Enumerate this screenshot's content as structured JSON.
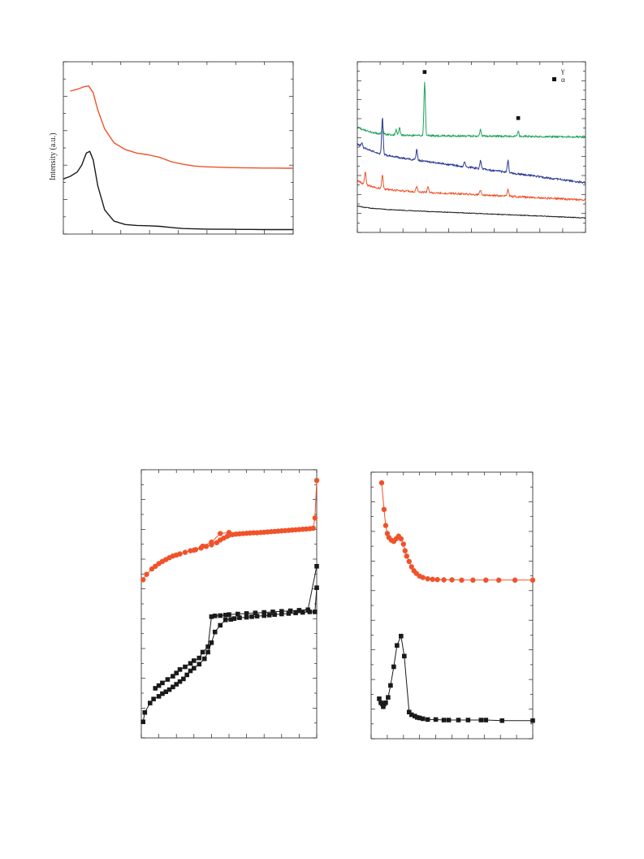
{
  "colors": {
    "black": "#1a1a1a",
    "orange": "#f0522a",
    "green": "#1fa65a",
    "blue": "#2a3a96"
  },
  "chart_data": [
    {
      "id": "saxs",
      "type": "line",
      "ylabel": "Intensity (a.u.)",
      "xlim": [
        0,
        10
      ],
      "ylim": [
        0,
        10
      ],
      "grid": false,
      "series": [
        {
          "color": "orange",
          "x": [
            0.3,
            0.6,
            0.9,
            1.1,
            1.3,
            1.5,
            1.8,
            2.2,
            2.7,
            3.2,
            3.7,
            4.2,
            4.7,
            5.2,
            5.7,
            6.2,
            6.7,
            7.2,
            7.7,
            8.2,
            8.7,
            9.2,
            9.7,
            10
          ],
          "y": [
            8.3,
            8.4,
            8.55,
            8.6,
            8.2,
            7.2,
            6.1,
            5.3,
            4.9,
            4.7,
            4.6,
            4.45,
            4.2,
            4.05,
            3.95,
            3.9,
            3.88,
            3.86,
            3.85,
            3.84,
            3.83,
            3.83,
            3.82,
            3.82
          ]
        },
        {
          "color": "black",
          "x": [
            0,
            0.3,
            0.6,
            0.8,
            1.0,
            1.15,
            1.3,
            1.5,
            1.8,
            2.2,
            2.7,
            3.2,
            3.7,
            4.2,
            4.7,
            5.2,
            5.7,
            6.2,
            6.7,
            7.2,
            7.7,
            8.2,
            8.7,
            9.2,
            9.7,
            10
          ],
          "y": [
            3.2,
            3.35,
            3.6,
            4.0,
            4.7,
            4.8,
            4.3,
            2.8,
            1.4,
            0.75,
            0.55,
            0.5,
            0.48,
            0.45,
            0.38,
            0.32,
            0.3,
            0.29,
            0.28,
            0.28,
            0.27,
            0.27,
            0.26,
            0.26,
            0.26,
            0.26
          ]
        }
      ],
      "annotations": []
    },
    {
      "id": "xrd",
      "type": "line",
      "xlim": [
        0,
        10
      ],
      "ylim": [
        0,
        10
      ],
      "grid": false,
      "legend": {
        "position": "top-right",
        "entries": [
          {
            "marker": "none",
            "label": "γ"
          },
          {
            "marker": "square",
            "label": "α"
          }
        ]
      },
      "series": [
        {
          "color": "green",
          "baseline": 5.7,
          "end": 5.6,
          "peaks": [
            [
              1.1,
              0.5
            ],
            [
              1.7,
              0.3
            ],
            [
              1.85,
              0.4
            ],
            [
              2.95,
              3.1
            ],
            [
              5.4,
              0.4
            ],
            [
              7.05,
              0.3
            ]
          ]
        },
        {
          "color": "blue",
          "baseline": 4.7,
          "end": 2.9,
          "peaks": [
            [
              0.2,
              0.2
            ],
            [
              1.1,
              2.2
            ],
            [
              2.6,
              0.6
            ],
            [
              4.7,
              0.3
            ],
            [
              5.4,
              0.5
            ],
            [
              6.6,
              0.7
            ]
          ]
        },
        {
          "color": "orange",
          "baseline": 2.55,
          "end": 1.9,
          "peaks": [
            [
              0.35,
              0.7
            ],
            [
              1.1,
              0.8
            ],
            [
              2.6,
              0.3
            ],
            [
              3.1,
              0.3
            ],
            [
              5.4,
              0.3
            ],
            [
              6.6,
              0.4
            ]
          ]
        },
        {
          "color": "black",
          "baseline": 1.4,
          "end": 0.85,
          "peaks": []
        }
      ],
      "annotations": [
        {
          "marker": "square",
          "x": 2.95,
          "y": 9.4
        },
        {
          "marker": "square",
          "x": 7.05,
          "y": 6.7
        }
      ]
    },
    {
      "id": "isotherm",
      "type": "line",
      "xlim": [
        0,
        1
      ],
      "ylim": [
        0,
        10
      ],
      "grid": false,
      "series": [
        {
          "color": "orange",
          "marker": "circle",
          "name": "",
          "x": [
            0.01,
            0.03,
            0.06,
            0.08,
            0.1,
            0.12,
            0.14,
            0.16,
            0.18,
            0.2,
            0.22,
            0.25,
            0.28,
            0.31,
            0.34,
            0.37,
            0.4,
            0.43,
            0.45,
            0.47,
            0.49,
            0.5,
            0.52,
            0.54,
            0.56,
            0.58,
            0.6,
            0.62,
            0.64,
            0.66,
            0.68,
            0.7,
            0.72,
            0.74,
            0.76,
            0.78,
            0.8,
            0.82,
            0.84,
            0.86,
            0.88,
            0.9,
            0.92,
            0.94,
            0.96,
            0.98,
            0.99,
            1.0
          ],
          "y": [
            5.9,
            6.1,
            6.3,
            6.4,
            6.5,
            6.58,
            6.65,
            6.72,
            6.78,
            6.82,
            6.86,
            6.92,
            6.98,
            7.02,
            7.08,
            7.14,
            7.2,
            7.28,
            7.38,
            7.45,
            7.52,
            7.56,
            7.58,
            7.6,
            7.61,
            7.62,
            7.63,
            7.64,
            7.65,
            7.65,
            7.66,
            7.67,
            7.68,
            7.69,
            7.7,
            7.71,
            7.72,
            7.73,
            7.74,
            7.75,
            7.76,
            7.77,
            7.78,
            7.79,
            7.8,
            7.82,
            8.2,
            9.6
          ]
        },
        {
          "color": "orange",
          "marker": "circle",
          "name": "",
          "x": [
            0.5,
            0.45,
            0.4,
            0.35,
            0.3
          ],
          "y": [
            7.66,
            7.62,
            7.3,
            7.15,
            7.0
          ]
        },
        {
          "color": "black",
          "marker": "square",
          "name": "",
          "x": [
            0.01,
            0.02,
            0.05,
            0.07,
            0.1,
            0.12,
            0.14,
            0.16,
            0.18,
            0.2,
            0.22,
            0.24,
            0.26,
            0.28,
            0.3,
            0.33,
            0.36,
            0.38,
            0.4,
            0.42,
            0.45,
            0.48,
            0.51,
            0.53,
            0.56,
            0.6,
            0.63,
            0.66,
            0.7,
            0.73,
            0.76,
            0.8,
            0.84,
            0.88,
            0.92,
            0.96,
            0.99,
            1.0
          ],
          "y": [
            0.6,
            0.95,
            1.3,
            1.45,
            1.55,
            1.65,
            1.72,
            1.8,
            1.9,
            2.0,
            2.1,
            2.2,
            2.35,
            2.5,
            2.6,
            2.75,
            2.95,
            3.2,
            3.55,
            3.95,
            4.2,
            4.4,
            4.42,
            4.45,
            4.48,
            4.5,
            4.52,
            4.54,
            4.56,
            4.58,
            4.6,
            4.62,
            4.64,
            4.66,
            4.68,
            4.7,
            4.7,
            5.6
          ]
        },
        {
          "color": "black",
          "marker": "square",
          "name": "",
          "x": [
            1.0,
            0.95,
            0.9,
            0.85,
            0.8,
            0.75,
            0.7,
            0.65,
            0.6,
            0.55,
            0.5,
            0.48,
            0.45,
            0.42,
            0.4,
            0.38,
            0.35,
            0.33,
            0.3,
            0.28,
            0.25,
            0.22,
            0.2,
            0.18,
            0.15,
            0.12,
            0.1,
            0.08
          ],
          "y": [
            6.4,
            4.78,
            4.76,
            4.74,
            4.72,
            4.7,
            4.68,
            4.66,
            4.64,
            4.62,
            4.6,
            4.58,
            4.56,
            4.55,
            4.52,
            3.4,
            3.2,
            2.98,
            2.88,
            2.78,
            2.65,
            2.55,
            2.42,
            2.3,
            2.18,
            2.05,
            1.95,
            1.85
          ]
        }
      ]
    },
    {
      "id": "psd",
      "type": "line",
      "xlim": [
        0,
        10
      ],
      "ylim": [
        0,
        10
      ],
      "grid": false,
      "series": [
        {
          "color": "orange",
          "marker": "circle",
          "name": "",
          "x": [
            0.65,
            0.8,
            0.9,
            1.0,
            1.1,
            1.25,
            1.4,
            1.55,
            1.7,
            1.85,
            2.0,
            2.1,
            2.2,
            2.35,
            2.5,
            2.65,
            2.8,
            3.0,
            3.2,
            3.5,
            3.8,
            4.1,
            4.5,
            5.0,
            5.6,
            6.3,
            7.1,
            7.9,
            8.9,
            10
          ],
          "y": [
            9.6,
            8.6,
            8.0,
            7.7,
            7.55,
            7.45,
            7.4,
            7.5,
            7.6,
            7.5,
            7.3,
            7.05,
            6.85,
            6.65,
            6.45,
            6.3,
            6.2,
            6.1,
            6.05,
            6.0,
            5.98,
            5.97,
            5.96,
            5.96,
            5.95,
            5.95,
            5.95,
            5.95,
            5.95,
            5.95
          ]
        },
        {
          "color": "black",
          "marker": "square",
          "name": "",
          "x": [
            0.5,
            0.6,
            0.7,
            0.75,
            0.8,
            0.9,
            1.05,
            1.2,
            1.4,
            1.6,
            1.85,
            2.05,
            2.35,
            2.5,
            2.7,
            2.85,
            3.0,
            3.2,
            3.5,
            4.0,
            4.5,
            4.8,
            5.4,
            6.0,
            6.8,
            7.1,
            8.1,
            10
          ],
          "y": [
            1.5,
            1.35,
            1.3,
            1.2,
            1.3,
            1.35,
            1.55,
            2.0,
            2.7,
            3.5,
            3.85,
            3.1,
            1.0,
            0.9,
            0.85,
            0.8,
            0.78,
            0.75,
            0.72,
            0.72,
            0.7,
            0.7,
            0.7,
            0.7,
            0.7,
            0.7,
            0.68,
            0.68
          ]
        }
      ]
    }
  ]
}
